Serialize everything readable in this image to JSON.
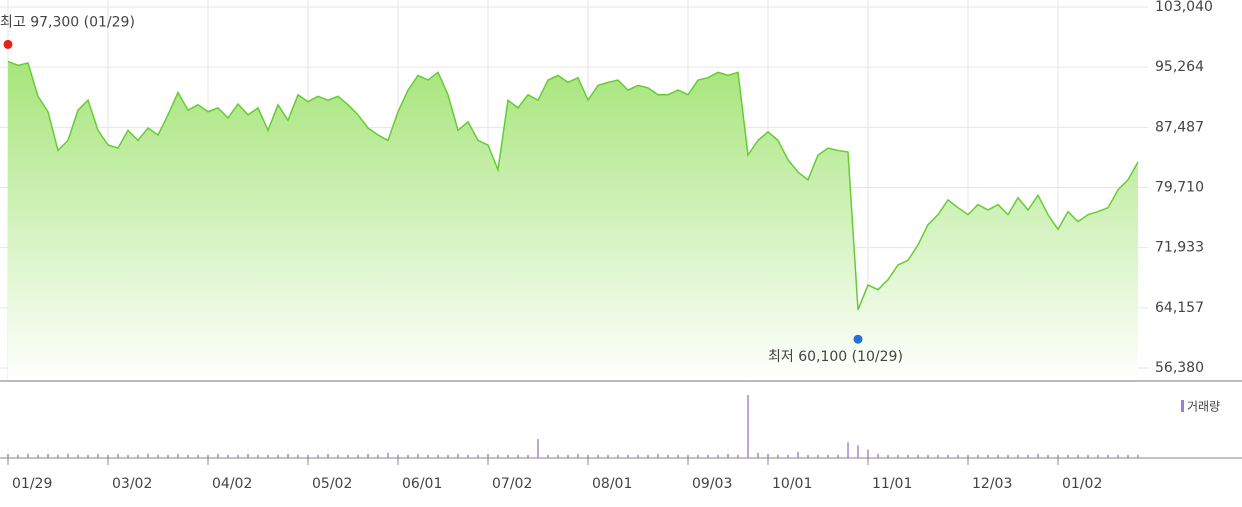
{
  "chart_data": {
    "type": "area",
    "categories": [
      "01/29",
      null,
      null,
      null,
      null,
      null,
      null,
      null,
      null,
      null,
      "03/02",
      null,
      null,
      null,
      null,
      null,
      null,
      null,
      null,
      null,
      "04/02",
      null,
      null,
      null,
      null,
      null,
      null,
      null,
      null,
      null,
      "05/02",
      null,
      null,
      null,
      null,
      null,
      null,
      null,
      null,
      "06/01",
      null,
      null,
      null,
      null,
      null,
      null,
      null,
      null,
      "07/02",
      null,
      null,
      null,
      null,
      null,
      null,
      null,
      null,
      null,
      "08/01",
      null,
      null,
      null,
      null,
      null,
      null,
      null,
      null,
      null,
      "09/03",
      null,
      null,
      null,
      null,
      null,
      null,
      null,
      "10/01",
      null,
      null,
      null,
      null,
      null,
      null,
      null,
      null,
      null,
      "11/01",
      null,
      null,
      null,
      null,
      null,
      null,
      null,
      null,
      null,
      "12/03",
      null,
      null,
      null,
      null,
      null,
      null,
      null,
      null,
      "01/02",
      null,
      null,
      null,
      null,
      null,
      null,
      null,
      null
    ],
    "series": [
      {
        "color": "#66cc33",
        "values": [
          96000,
          95500,
          95800,
          91500,
          89500,
          84500,
          85800,
          89700,
          91000,
          87100,
          85200,
          84800,
          87100,
          85800,
          87400,
          86500,
          89100,
          92000,
          89700,
          90400,
          89500,
          90000,
          88700,
          90500,
          89100,
          90000,
          87100,
          90400,
          88400,
          91700,
          90800,
          91500,
          91000,
          91500,
          90400,
          89100,
          87400,
          86500,
          85800,
          89500,
          92300,
          94200,
          93600,
          94600,
          91700,
          87100,
          88200,
          85800,
          85200,
          82000,
          91000,
          90000,
          91700,
          91000,
          93600,
          94200,
          93300,
          93900,
          91000,
          92900,
          93300,
          93600,
          92300,
          92900,
          92600,
          91700,
          91700,
          92300,
          91700,
          93600,
          93900,
          94600,
          94200,
          94600,
          83900,
          85800,
          86900,
          85800,
          83300,
          81700,
          80700,
          83900,
          84800,
          84500,
          84300,
          63900,
          67100,
          66500,
          67800,
          69700,
          70300,
          72300,
          74900,
          76200,
          78100,
          77100,
          76200,
          77500,
          76800,
          77500,
          76200,
          78400,
          76800,
          78700,
          76200,
          74300,
          76600,
          75300,
          76200,
          76600,
          77100,
          79400,
          80700,
          83000
        ]
      },
      {
        "name": "거래량",
        "color": "#9b7fd0",
        "values": [
          4,
          3,
          4,
          3,
          4,
          3,
          4,
          3,
          3,
          4,
          3,
          4,
          3,
          3,
          4,
          3,
          3,
          4,
          3,
          3,
          3,
          4,
          3,
          3,
          4,
          3,
          3,
          3,
          4,
          3,
          3,
          3,
          4,
          3,
          3,
          3,
          4,
          3,
          5,
          3,
          3,
          4,
          3,
          3,
          3,
          4,
          3,
          3,
          4,
          3,
          3,
          3,
          3,
          18,
          3,
          3,
          3,
          4,
          3,
          3,
          3,
          3,
          3,
          3,
          3,
          4,
          3,
          3,
          3,
          3,
          3,
          3,
          4,
          3,
          60,
          5,
          4,
          3,
          3,
          6,
          3,
          3,
          3,
          3,
          15,
          12,
          8,
          4,
          3,
          3,
          3,
          3,
          3,
          3,
          3,
          3,
          3,
          3,
          3,
          3,
          3,
          3,
          3,
          4,
          3,
          3,
          3,
          3,
          3,
          3,
          3,
          3,
          3,
          3
        ]
      }
    ],
    "ylim": [
      56380,
      103040
    ],
    "yticks": [
      {
        "value": 56380,
        "label": "56,380"
      },
      {
        "value": 64157,
        "label": "64,157"
      },
      {
        "value": 71933,
        "label": "71,933"
      },
      {
        "value": 79710,
        "label": "79,710"
      },
      {
        "value": 87487,
        "label": "87,487"
      },
      {
        "value": 95264,
        "label": "95,264"
      },
      {
        "value": 103040,
        "label": "103,040"
      }
    ],
    "grid": true,
    "annotations": [
      {
        "text": "최고 97,300 (01/29)",
        "value": 97300,
        "color": "#e8201a"
      },
      {
        "text": "최저 60,100 (10/29)",
        "value": 60100,
        "color": "#2a6fd8"
      }
    ]
  }
}
